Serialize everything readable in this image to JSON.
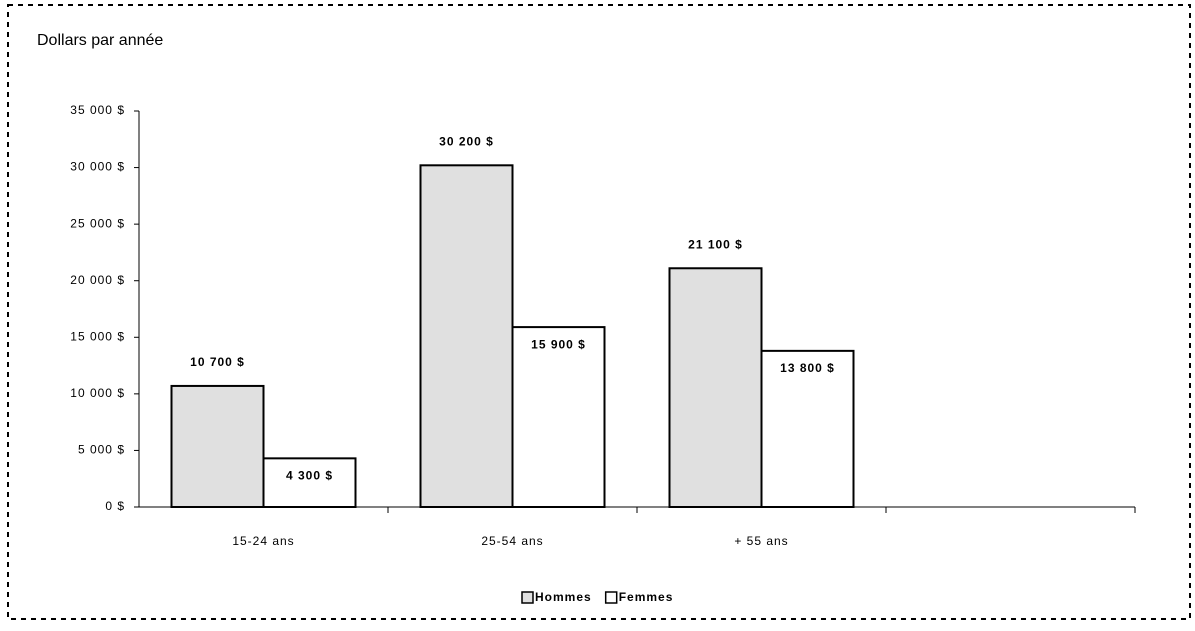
{
  "chart_data": {
    "type": "bar",
    "ylabel": "Dollars par année",
    "categories": [
      "15-24 ans",
      "25-54 ans",
      "+  55 ans",
      null
    ],
    "series": [
      {
        "name": "Hommes",
        "color": "#e0e0e0",
        "values": [
          10700,
          30200,
          21100,
          null
        ],
        "value_labels": [
          "10 700 $",
          "30 200 $",
          "21 100 $",
          null
        ]
      },
      {
        "name": "Femmes",
        "color": "#ffffff",
        "values": [
          4300,
          15900,
          13800,
          null
        ],
        "value_labels": [
          "4 300 $",
          "15 900 $",
          "13 800 $",
          null
        ]
      }
    ],
    "ylim": [
      0,
      35000
    ],
    "yticks": [
      {
        "value": 0,
        "label": "0 $"
      },
      {
        "value": 5000,
        "label": "5 000 $"
      },
      {
        "value": 10000,
        "label": "10 000 $"
      },
      {
        "value": 15000,
        "label": "15 000 $"
      },
      {
        "value": 20000,
        "label": "20 000 $"
      },
      {
        "value": 25000,
        "label": "25 000 $"
      },
      {
        "value": 30000,
        "label": "30 000 $"
      },
      {
        "value": 35000,
        "label": "35 000 $"
      }
    ],
    "grid": false,
    "legend": "bottom"
  }
}
